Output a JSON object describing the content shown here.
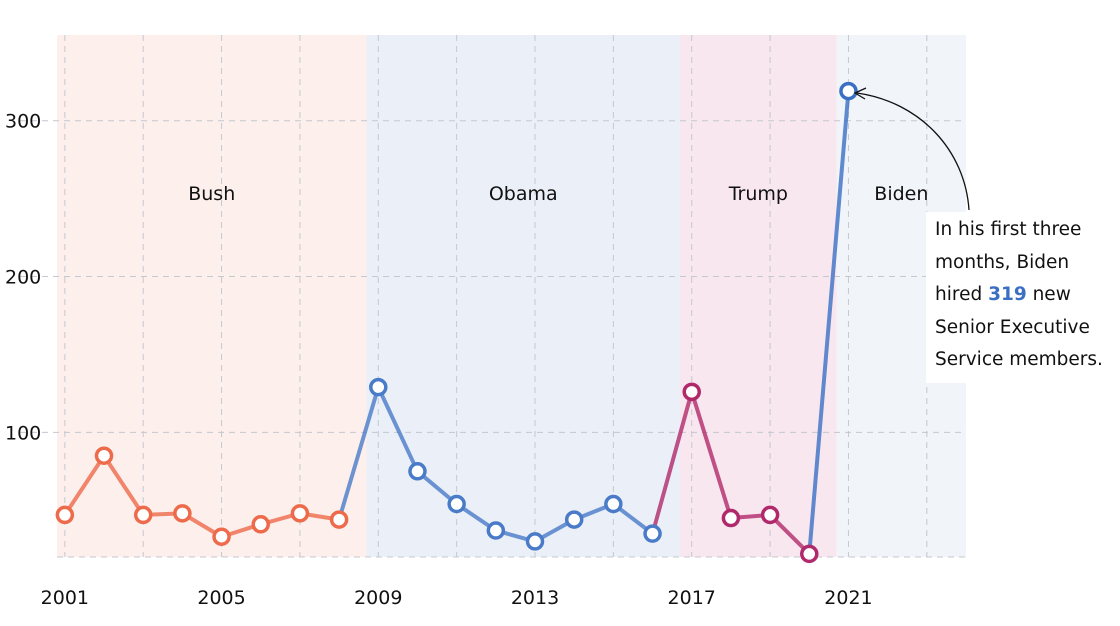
{
  "chart_data": {
    "type": "line",
    "x": [
      2001,
      2002,
      2003,
      2004,
      2005,
      2006,
      2007,
      2008,
      2009,
      2010,
      2011,
      2012,
      2013,
      2014,
      2015,
      2016,
      2017,
      2018,
      2019,
      2020,
      2021
    ],
    "values": [
      47,
      85,
      47,
      48,
      33,
      41,
      48,
      44,
      129,
      75,
      54,
      37,
      30,
      44,
      54,
      35,
      126,
      45,
      47,
      22,
      319
    ],
    "eras": [
      {
        "label": "Bush",
        "start": 2000.8,
        "end": 2008.7,
        "color": "#ed6a4b",
        "band": "#fdf0ec"
      },
      {
        "label": "Obama",
        "start": 2008.7,
        "end": 2016.7,
        "color": "#4a7bc8",
        "band": "#ebf0f8"
      },
      {
        "label": "Trump",
        "start": 2016.7,
        "end": 2020.7,
        "color": "#b0296a",
        "band": "#f8e7ee"
      },
      {
        "label": "Biden",
        "start": 2020.7,
        "end": 2024.0,
        "color": "#3b6fc4",
        "band": "#f1f4f9"
      }
    ],
    "x_ticks": [
      2001,
      2005,
      2009,
      2013,
      2017,
      2021
    ],
    "x_tick_labels": [
      "2001",
      "2005",
      "2009",
      "2013",
      "2017",
      "2021"
    ],
    "y_ticks": [
      100,
      200,
      300
    ],
    "y_tick_labels": [
      "100",
      "200",
      "300"
    ],
    "xlim": [
      2000.8,
      2024.0
    ],
    "ylim": [
      20,
      355
    ],
    "grid": true
  },
  "annotation": {
    "line1": "In his first three",
    "line2": "months, Biden",
    "line3_pre": "hired ",
    "line3_value": "319",
    "line3_post": " new",
    "line4": "Senior Executive",
    "line5": "Service members."
  }
}
